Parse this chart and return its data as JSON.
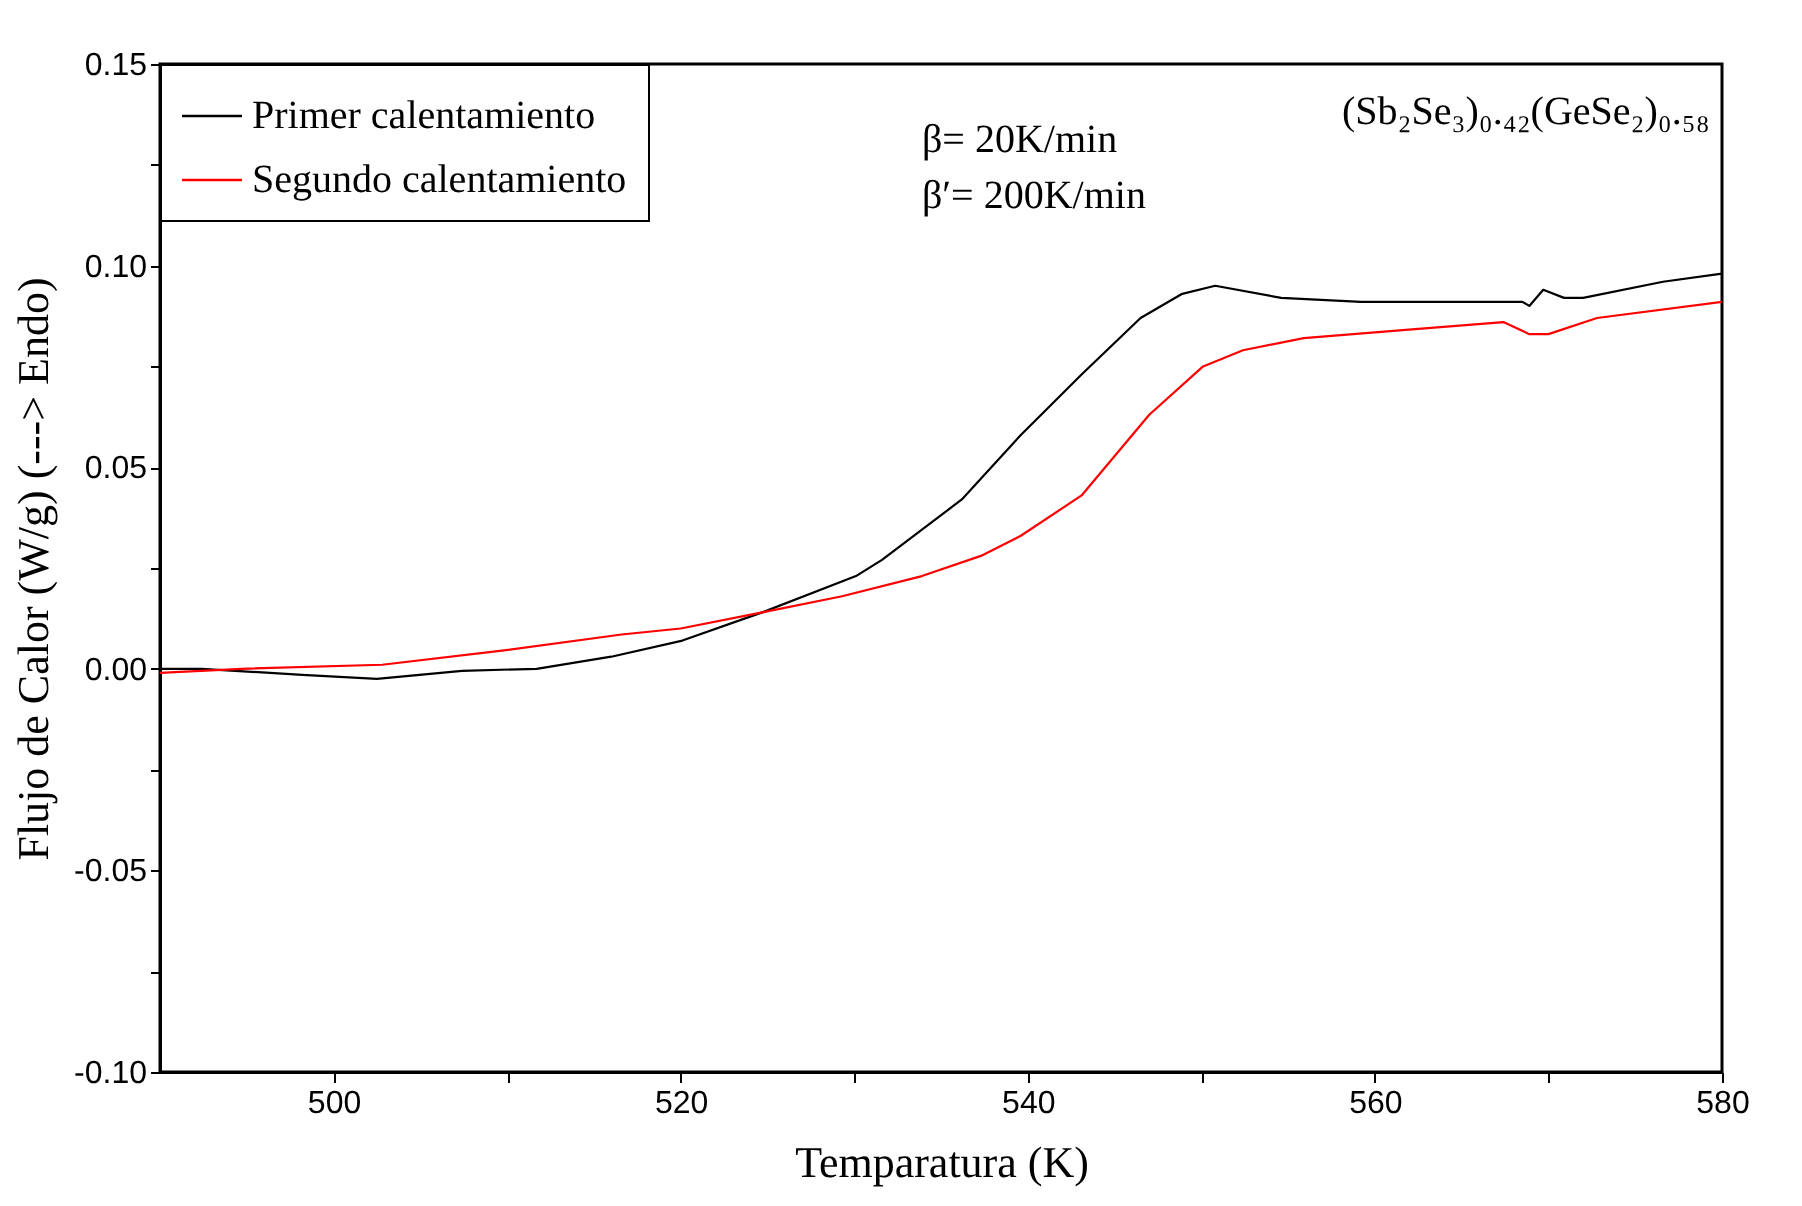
{
  "chart_data": {
    "type": "line",
    "xlabel": "Temparatura (K)",
    "ylabel": "Flujo de Calor (W/g) (---> Endo)",
    "annotations": [
      "β= 20K/min",
      "β′= 200K/min",
      "(Sb₂Se₃)₀.₄₂(GeSe₂)₀.₅₈"
    ],
    "xlim": [
      490,
      580
    ],
    "xticks": [
      500,
      {
        "value": 510,
        "label": null
      },
      520,
      {
        "value": 530,
        "label": null
      },
      540,
      {
        "value": 550,
        "label": null
      },
      560,
      {
        "value": 570,
        "label": null
      },
      580
    ],
    "ylim": [
      -0.1,
      0.15
    ],
    "yticks": [
      {
        "value": -0.1,
        "label": "-0.10"
      },
      {
        "value": -0.075,
        "label": null
      },
      {
        "value": -0.05,
        "label": "-0.05"
      },
      {
        "value": -0.025,
        "label": null
      },
      {
        "value": 0,
        "label": "0.00"
      },
      {
        "value": 0.025,
        "label": null
      },
      {
        "value": 0.05,
        "label": "0.05"
      },
      {
        "value": 0.075,
        "label": null
      },
      {
        "value": 0.1,
        "label": "0.10"
      },
      {
        "value": 0.125,
        "label": null
      },
      {
        "value": 0.15,
        "label": "0.15"
      }
    ],
    "grid": false,
    "legend": "top left",
    "line_style": "solid",
    "series": [
      {
        "name": "Primer calentamiento",
        "color": "#000000",
        "x": [
          490,
          492.4,
          498.2,
          502.5,
          507.4,
          511.7,
          516,
          520.1,
          524.7,
          530.1,
          531.6,
          536.2,
          539.6,
          543.1,
          546.5,
          548.9,
          550.8,
          554.6,
          559.2,
          562.8,
          568.5,
          568.9,
          569.7,
          570.9,
          572,
          576.6,
          580
        ],
        "values": [
          0,
          0,
          -0.0015,
          -0.0025,
          -0.0005,
          0,
          0.003,
          0.007,
          0.014,
          0.023,
          0.027,
          0.042,
          0.058,
          0.073,
          0.087,
          0.093,
          0.095,
          0.092,
          0.091,
          0.091,
          0.091,
          0.09,
          0.094,
          0.092,
          0.092,
          0.096,
          0.098
        ]
      },
      {
        "name": "Segundo calentamiento",
        "color": "#ff0000",
        "x": [
          490,
          494.7,
          502.8,
          509.7,
          516.6,
          520,
          524.7,
          529.3,
          533.9,
          537.3,
          539.6,
          543.1,
          547,
          550.1,
          552.4,
          555.9,
          561.6,
          567.4,
          568.9,
          570,
          572.8,
          580
        ],
        "values": [
          -0.001,
          0,
          0.001,
          0.0045,
          0.0085,
          0.01,
          0.014,
          0.018,
          0.023,
          0.028,
          0.033,
          0.043,
          0.063,
          0.075,
          0.079,
          0.082,
          0.084,
          0.086,
          0.083,
          0.083,
          0.087,
          0.091
        ]
      }
    ]
  }
}
